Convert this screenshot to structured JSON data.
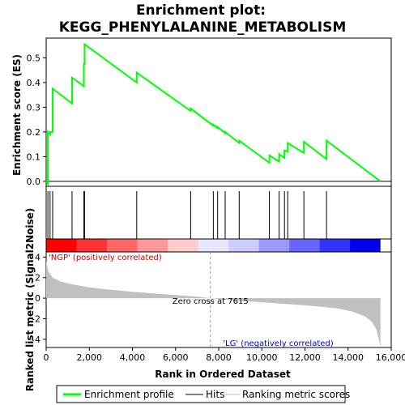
{
  "chart_data": {
    "type": "line",
    "title_line1": "Enrichment plot:",
    "title_line2": "KEGG_PHENYLALANINE_METABOLISM",
    "xlabel": "Rank in Ordered Dataset",
    "ylabel_top": "Enrichment score (ES)",
    "ylabel_bottom": "Ranked list metric (Signal2Noise)",
    "xlim": [
      0,
      16000
    ],
    "x_ticks": [
      0,
      2000,
      4000,
      6000,
      8000,
      10000,
      12000,
      14000,
      16000
    ],
    "x_tick_labels": [
      "0",
      "2,000",
      "4,000",
      "6,000",
      "8,000",
      "10,000",
      "12,000",
      "14,000",
      "16,000"
    ],
    "es_ylim": [
      -0.02,
      0.58
    ],
    "es_ticks": [
      0.0,
      0.1,
      0.2,
      0.3,
      0.4,
      0.5
    ],
    "es_tick_labels": [
      "0.0",
      "0.1",
      "0.2",
      "0.3",
      "0.4",
      "0.5"
    ],
    "metric_ylim": [
      -4.8,
      4.5
    ],
    "metric_ticks": [
      -4,
      -2,
      0,
      2,
      4
    ],
    "metric_tick_labels": [
      "-4",
      "-2",
      "0",
      "2",
      "4"
    ],
    "n_genes": 15500,
    "hits": [
      80,
      180,
      300,
      1200,
      1750,
      1780,
      4200,
      6700,
      7750,
      7950,
      8300,
      8950,
      10350,
      10800,
      11050,
      11200,
      11950,
      13000
    ],
    "es_profile": {
      "x": [
        0,
        80,
        80,
        180,
        180,
        300,
        300,
        1200,
        1200,
        1750,
        1750,
        1780,
        1780,
        4200,
        4200,
        6700,
        6700,
        7750,
        7750,
        7950,
        7950,
        8300,
        8300,
        8950,
        8950,
        10350,
        10350,
        10800,
        10800,
        11050,
        11050,
        11200,
        11200,
        11950,
        11950,
        13000,
        13000,
        15500
      ],
      "y": [
        0.0,
        -0.01,
        0.2,
        0.19,
        0.2,
        0.2,
        0.375,
        0.315,
        0.42,
        0.385,
        0.475,
        0.475,
        0.555,
        0.4,
        0.44,
        0.285,
        0.295,
        0.225,
        0.23,
        0.215,
        0.22,
        0.195,
        0.2,
        0.155,
        0.165,
        0.075,
        0.105,
        0.08,
        0.11,
        0.095,
        0.125,
        0.12,
        0.155,
        0.115,
        0.16,
        0.09,
        0.165,
        0.0
      ]
    },
    "series": [
      {
        "name": "Enrichment profile",
        "color": "#00ff00"
      },
      {
        "name": "Hits",
        "color": "#000000"
      },
      {
        "name": "Ranking metric scores",
        "color": "#c0c0c0"
      }
    ],
    "metric_curve": {
      "x": [
        0,
        100,
        300,
        700,
        1200,
        2000,
        3000,
        4000,
        5000,
        6000,
        7000,
        7615,
        8500,
        9500,
        10500,
        11500,
        12500,
        13500,
        14200,
        14800,
        15100,
        15300,
        15450,
        15500
      ],
      "y": [
        3.6,
        2.6,
        2.0,
        1.6,
        1.35,
        1.05,
        0.82,
        0.62,
        0.45,
        0.3,
        0.14,
        0.0,
        -0.18,
        -0.33,
        -0.47,
        -0.62,
        -0.78,
        -1.0,
        -1.3,
        -1.8,
        -2.3,
        -3.0,
        -4.2,
        -4.8
      ]
    },
    "zero_cross_label": "Zero cross at 7615",
    "zero_cross": 7615,
    "label_pos": "'NGP' (positively correlated)",
    "label_neg": "'LG' (negatively correlated)",
    "heat_colors": [
      "#ff0000",
      "#ff3333",
      "#ff6666",
      "#ff9999",
      "#ffcccc",
      "#e6e6ff",
      "#ccccff",
      "#9999ff",
      "#6666ff",
      "#3333ff",
      "#0000ee"
    ],
    "color_pos": "#ff0000",
    "color_neg": "#0000ff"
  }
}
